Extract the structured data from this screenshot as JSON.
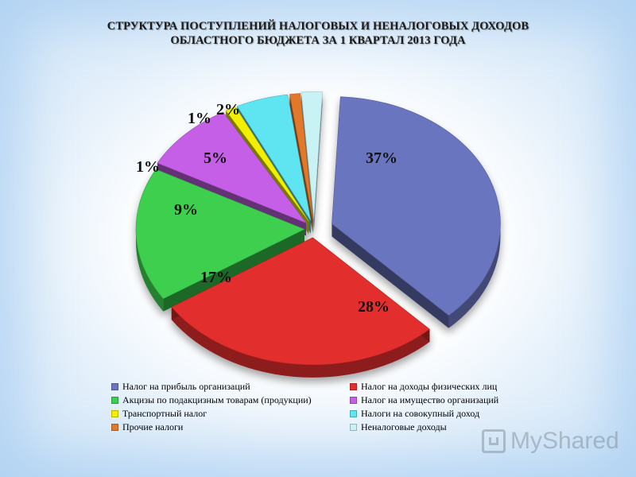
{
  "title_line1": "СТРУКТУРА ПОСТУПЛЕНИЙ НАЛОГОВЫХ И НЕНАЛОГОВЫХ ДОХОДОВ",
  "title_line2": "ОБЛАСТНОГО БЮДЖЕТА ЗА 1 КВАРТАЛ 2013 ГОДА",
  "watermark": "MyShared",
  "chart_data": {
    "type": "pie",
    "title": "СТРУКТУРА ПОСТУПЛЕНИЙ НАЛОГОВЫХ И НЕНАЛОГОВЫХ ДОХОДОВ ОБЛАСТНОГО БЮДЖЕТА ЗА 1 КВАРТАЛ 2013 ГОДА",
    "exploded": true,
    "three_d": true,
    "legend_position": "bottom",
    "slices": [
      {
        "name": "Налог на прибыль организаций",
        "value": 37,
        "label": "37%",
        "color": "#6b74c0"
      },
      {
        "name": "Налог на доходы физических лиц",
        "value": 28,
        "label": "28%",
        "color": "#e32d2d"
      },
      {
        "name": "Акцизы по подакцизным товарам (продукции)",
        "value": 17,
        "label": "17%",
        "color": "#3ccf4e"
      },
      {
        "name": "Налог на имущество организаций",
        "value": 9,
        "label": "9%",
        "color": "#c55fe8"
      },
      {
        "name": "Транспортный налог",
        "value": 1,
        "label": "1%",
        "color": "#f2f000"
      },
      {
        "name": "Налоги на совокупный доход",
        "value": 5,
        "label": "5%",
        "color": "#5fe4f2"
      },
      {
        "name": "Прочие налоги",
        "value": 1,
        "label": "1%",
        "color": "#e2782a"
      },
      {
        "name": "Неналоговые доходы",
        "value": 2,
        "label": "2%",
        "color": "#c9f2f5"
      }
    ]
  }
}
